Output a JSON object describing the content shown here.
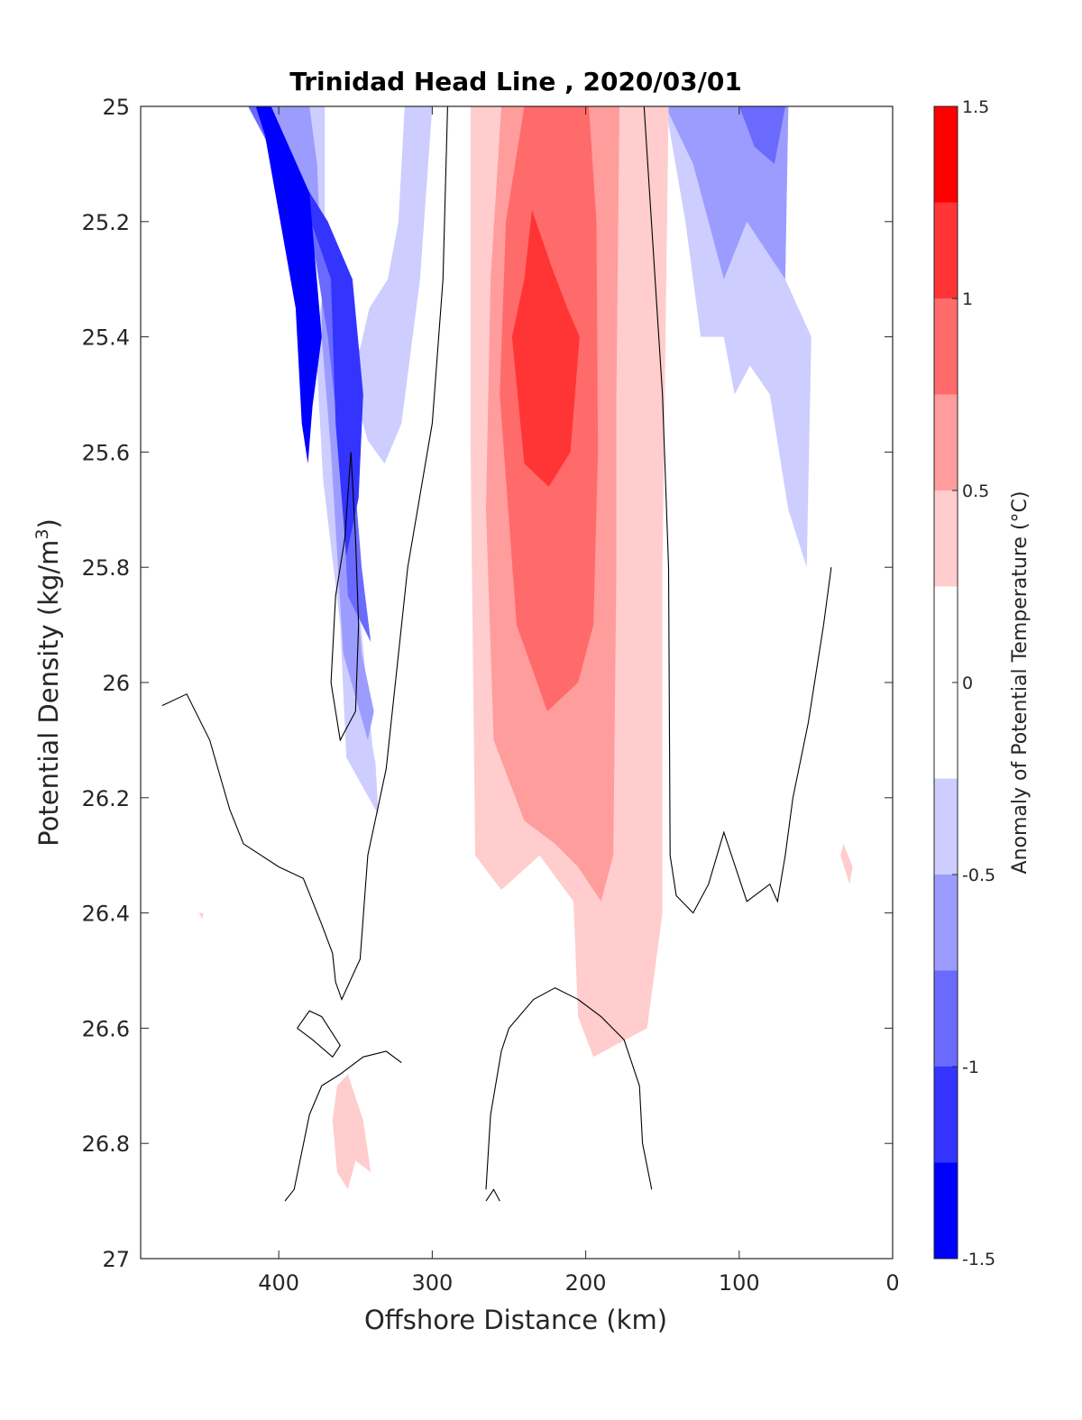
{
  "chart_data": {
    "type": "heatmap",
    "subtype": "filled-contour",
    "title": "Trinidad Head Line , 2020/03/01",
    "xlabel": "Offshore Distance (km)",
    "ylabel_main": "Potential Density (kg/m",
    "ylabel_sup": "3",
    "ylabel_close": ")",
    "xlim": [
      490,
      0
    ],
    "x_reversed": true,
    "ylim": [
      25,
      27
    ],
    "y_reversed": true,
    "xticks": [
      400,
      300,
      200,
      100,
      0
    ],
    "yticks": [
      25,
      25.2,
      25.4,
      25.6,
      25.8,
      26,
      26.2,
      26.4,
      26.6,
      26.8,
      27
    ],
    "xtick_labels": [
      "400",
      "300",
      "200",
      "100",
      "0"
    ],
    "ytick_labels": [
      "25",
      "25.2",
      "25.4",
      "25.6",
      "25.8",
      "26",
      "26.2",
      "26.4",
      "26.6",
      "26.8",
      "27"
    ],
    "colorbar": {
      "label": "Anomaly of Potential Temperature (°C)",
      "range": [
        -1.5,
        1.5
      ],
      "ticks": [
        1.5,
        1,
        0.5,
        0,
        -0.5,
        -1,
        -1.5
      ],
      "tick_labels": [
        "1.5",
        "1",
        "0.5",
        "0",
        "-0.5",
        "-1",
        "-1.5"
      ],
      "levels": [
        -1.5,
        -1.25,
        -1.0,
        -0.75,
        -0.5,
        -0.25,
        0.25,
        0.5,
        0.75,
        1.0,
        1.25,
        1.5
      ],
      "colors": [
        "#0000ff",
        "#3434ff",
        "#6a6aff",
        "#9c9cff",
        "#cdcdff",
        "#ffffff",
        "#ffcdcd",
        "#ff9c9c",
        "#ff6a6a",
        "#ff3434",
        "#ff0000"
      ]
    },
    "regions": [
      {
        "level": -0.25,
        "color": "#cdcdff",
        "points": [
          [
            470,
            25
          ],
          [
            405,
            25
          ],
          [
            366,
            25.3
          ],
          [
            358,
            25.3
          ],
          [
            350,
            25.8
          ],
          [
            339,
            26.11
          ],
          [
            337,
            26.14
          ],
          [
            335,
            26.23
          ],
          [
            356,
            26.13
          ],
          [
            360,
            25.9
          ],
          [
            371,
            25.65
          ],
          [
            376,
            25.41
          ],
          [
            370,
            25.3
          ],
          [
            370,
            25
          ],
          [
            300,
            25
          ],
          [
            308,
            25.3
          ],
          [
            320,
            25.55
          ],
          [
            331,
            25.62
          ],
          [
            342,
            25.58
          ],
          [
            356,
            25.45
          ],
          [
            347,
            25.42
          ],
          [
            341,
            25.35
          ],
          [
            329,
            25.3
          ],
          [
            322,
            25.2
          ],
          [
            318,
            25
          ],
          [
            470,
            25
          ]
        ]
      },
      {
        "level": -0.5,
        "color": "#9c9cff",
        "points": [
          [
            470,
            25
          ],
          [
            405,
            25
          ],
          [
            366,
            25.3
          ],
          [
            358,
            25.5
          ],
          [
            352,
            25.75
          ],
          [
            346,
            25.95
          ],
          [
            338,
            26.05
          ],
          [
            342,
            26.1
          ],
          [
            358,
            25.95
          ],
          [
            366,
            25.6
          ],
          [
            372,
            25.4
          ],
          [
            372,
            25.3
          ],
          [
            375,
            25.1
          ],
          [
            380,
            25
          ],
          [
            470,
            25
          ]
        ]
      },
      {
        "level": -0.75,
        "color": "#6a6aff",
        "points": [
          [
            455,
            25
          ],
          [
            405,
            25
          ],
          [
            365,
            25.3
          ],
          [
            355,
            25.5
          ],
          [
            346,
            25.8
          ],
          [
            340,
            25.93
          ],
          [
            355,
            25.85
          ],
          [
            360,
            25.6
          ],
          [
            368,
            25.4
          ],
          [
            380,
            25.2
          ],
          [
            420,
            25
          ],
          [
            455,
            25
          ]
        ]
      },
      {
        "level": -1.0,
        "color": "#3434ff",
        "points": [
          [
            432,
            25
          ],
          [
            405,
            25
          ],
          [
            366,
            25.3
          ],
          [
            363,
            25.55
          ],
          [
            356,
            25.78
          ],
          [
            348,
            25.68
          ],
          [
            345,
            25.5
          ],
          [
            352,
            25.3
          ],
          [
            368,
            25.2
          ],
          [
            415,
            25
          ],
          [
            432,
            25
          ]
        ]
      },
      {
        "level": -1.25,
        "color": "#0000ff",
        "points": [
          [
            415,
            25
          ],
          [
            405,
            25
          ],
          [
            380,
            25.15
          ],
          [
            372,
            25.4
          ],
          [
            378,
            25.52
          ],
          [
            381,
            25.62
          ],
          [
            385,
            25.55
          ],
          [
            389,
            25.35
          ],
          [
            399,
            25.2
          ],
          [
            409,
            25.05
          ],
          [
            415,
            25
          ]
        ]
      },
      {
        "level": -0.25,
        "color": "#cdcdff",
        "points": [
          [
            148,
            25
          ],
          [
            68,
            25
          ],
          [
            70,
            25.3
          ],
          [
            53,
            25.4
          ],
          [
            56,
            25.8
          ],
          [
            68,
            25.7
          ],
          [
            80,
            25.5
          ],
          [
            93,
            25.45
          ],
          [
            103,
            25.5
          ],
          [
            110,
            25.4
          ],
          [
            125,
            25.4
          ],
          [
            135,
            25.2
          ],
          [
            148,
            25
          ]
        ]
      },
      {
        "level": -0.5,
        "color": "#9c9cff",
        "points": [
          [
            148,
            25
          ],
          [
            68,
            25
          ],
          [
            70,
            25.3
          ],
          [
            95,
            25.2
          ],
          [
            110,
            25.3
          ],
          [
            120,
            25.2
          ],
          [
            130,
            25.1
          ],
          [
            148,
            25
          ]
        ]
      },
      {
        "level": -0.75,
        "color": "#6a6aff",
        "points": [
          [
            100,
            25
          ],
          [
            70,
            25
          ],
          [
            77,
            25.1
          ],
          [
            90,
            25.07
          ],
          [
            100,
            25
          ]
        ]
      },
      {
        "level": 0.25,
        "color": "#ffcdcd",
        "points": [
          [
            275,
            25
          ],
          [
            146,
            25
          ],
          [
            150,
            25.8
          ],
          [
            150,
            26.4
          ],
          [
            160,
            26.6
          ],
          [
            195,
            26.65
          ],
          [
            205,
            26.58
          ],
          [
            208,
            26.38
          ],
          [
            230,
            26.3
          ],
          [
            255,
            26.36
          ],
          [
            272,
            26.3
          ],
          [
            275,
            25.6
          ],
          [
            275,
            25
          ]
        ]
      },
      {
        "level": 0.5,
        "color": "#ff9c9c",
        "points": [
          [
            255,
            25
          ],
          [
            178,
            25
          ],
          [
            180,
            25.5
          ],
          [
            180,
            25.8
          ],
          [
            182,
            26.3
          ],
          [
            190,
            26.38
          ],
          [
            205,
            26.32
          ],
          [
            220,
            26.28
          ],
          [
            240,
            26.24
          ],
          [
            260,
            26.1
          ],
          [
            265,
            25.7
          ],
          [
            262,
            25.3
          ],
          [
            255,
            25
          ]
        ]
      },
      {
        "level": 0.75,
        "color": "#ff6a6a",
        "points": [
          [
            240,
            25
          ],
          [
            198,
            25
          ],
          [
            193,
            25.2
          ],
          [
            192,
            25.6
          ],
          [
            195,
            25.9
          ],
          [
            205,
            26.0
          ],
          [
            225,
            26.05
          ],
          [
            245,
            25.9
          ],
          [
            256,
            25.5
          ],
          [
            252,
            25.2
          ],
          [
            240,
            25
          ]
        ]
      },
      {
        "level": 1.0,
        "color": "#ff3434",
        "points": [
          [
            235,
            25.18
          ],
          [
            222,
            25.28
          ],
          [
            212,
            25.35
          ],
          [
            204,
            25.4
          ],
          [
            210,
            25.6
          ],
          [
            224,
            25.66
          ],
          [
            240,
            25.62
          ],
          [
            248,
            25.4
          ],
          [
            240,
            25.3
          ],
          [
            235,
            25.18
          ]
        ]
      },
      {
        "level": 0.25,
        "color": "#ffcdcd",
        "points": [
          [
            355,
            26.68
          ],
          [
            345,
            26.76
          ],
          [
            340,
            26.85
          ],
          [
            350,
            26.83
          ],
          [
            355,
            26.88
          ],
          [
            362,
            26.85
          ],
          [
            365,
            26.76
          ],
          [
            362,
            26.7
          ],
          [
            355,
            26.68
          ]
        ]
      },
      {
        "level": 0.25,
        "color": "#ffcdcd",
        "points": [
          [
            32,
            26.28
          ],
          [
            26,
            26.32
          ],
          [
            28,
            26.35
          ],
          [
            34,
            26.3
          ],
          [
            32,
            26.28
          ]
        ]
      },
      {
        "level": 0.25,
        "color": "#ffcdcd",
        "points": [
          [
            452,
            26.4
          ],
          [
            449,
            26.4
          ],
          [
            450,
            26.41
          ],
          [
            452,
            26.4
          ]
        ]
      }
    ],
    "zero_contours": [
      [
        [
          476,
          26.04
        ],
        [
          460,
          26.02
        ],
        [
          445,
          26.1
        ],
        [
          432,
          26.22
        ],
        [
          423,
          26.28
        ],
        [
          400,
          26.32
        ],
        [
          384,
          26.34
        ],
        [
          375,
          26.4
        ],
        [
          372,
          26.42
        ],
        [
          365,
          26.47
        ],
        [
          363,
          26.52
        ],
        [
          359,
          26.55
        ],
        [
          347,
          26.48
        ],
        [
          342,
          26.3
        ],
        [
          330,
          26.15
        ],
        [
          316,
          25.8
        ],
        [
          300,
          25.55
        ],
        [
          293,
          25.3
        ],
        [
          290,
          25.0
        ]
      ],
      [
        [
          353,
          25.6
        ],
        [
          357,
          25.75
        ],
        [
          363,
          25.85
        ],
        [
          366,
          26.0
        ],
        [
          360,
          26.1
        ],
        [
          350,
          26.05
        ],
        [
          348,
          25.9
        ],
        [
          350,
          25.75
        ],
        [
          353,
          25.6
        ]
      ],
      [
        [
          162,
          25.0
        ],
        [
          150,
          25.5
        ],
        [
          146,
          25.8
        ],
        [
          145,
          26.3
        ],
        [
          141,
          26.37
        ],
        [
          130,
          26.4
        ],
        [
          120,
          26.35
        ],
        [
          110,
          26.26
        ],
        [
          95,
          26.38
        ],
        [
          80,
          26.35
        ],
        [
          75,
          26.38
        ],
        [
          70,
          26.3
        ],
        [
          65,
          26.2
        ],
        [
          55,
          26.07
        ],
        [
          45,
          25.9
        ],
        [
          40,
          25.8
        ]
      ],
      [
        [
          388,
          26.6
        ],
        [
          380,
          26.57
        ],
        [
          372,
          26.58
        ],
        [
          360,
          26.63
        ],
        [
          365,
          26.65
        ],
        [
          378,
          26.62
        ],
        [
          388,
          26.6
        ]
      ],
      [
        [
          320,
          26.66
        ],
        [
          330,
          26.64
        ],
        [
          345,
          26.65
        ],
        [
          360,
          26.68
        ],
        [
          372,
          26.7
        ],
        [
          380,
          26.75
        ],
        [
          390,
          26.88
        ],
        [
          396,
          26.9
        ]
      ],
      [
        [
          157,
          26.88
        ],
        [
          163,
          26.8
        ],
        [
          165,
          26.7
        ],
        [
          175,
          26.62
        ],
        [
          190,
          26.58
        ],
        [
          205,
          26.55
        ],
        [
          220,
          26.53
        ],
        [
          234,
          26.55
        ],
        [
          250,
          26.6
        ],
        [
          255,
          26.64
        ],
        [
          262,
          26.75
        ],
        [
          265,
          26.88
        ]
      ],
      [
        [
          265,
          26.9
        ],
        [
          260,
          26.88
        ],
        [
          256,
          26.9
        ]
      ]
    ]
  }
}
